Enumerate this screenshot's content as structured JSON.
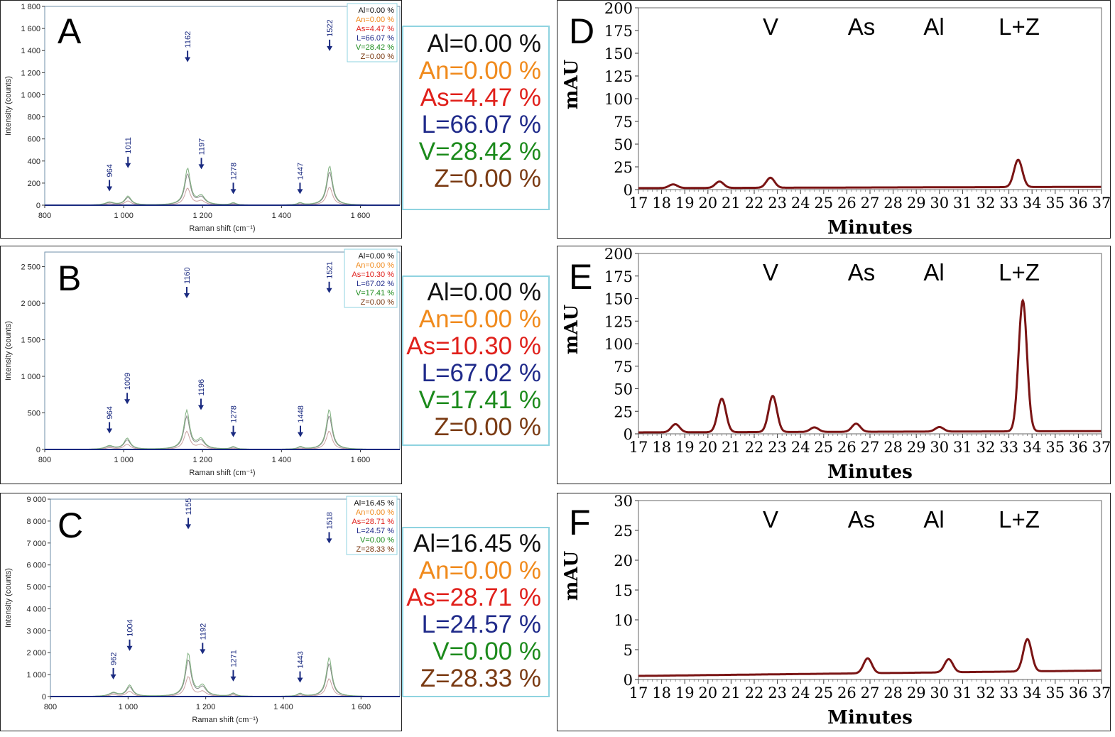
{
  "colors": {
    "Al": "#111111",
    "An": "#f08a1c",
    "As": "#e0201b",
    "L": "#1f2a8a",
    "V": "#1b8a1b",
    "Z": "#7a3a12",
    "hplc": "#7a1414",
    "box": "#8fd3e0"
  },
  "raman_panels": [
    {
      "letter": "A",
      "ylabel": "Intensity (counts)",
      "xlabel": "Raman shift (cm⁻¹)",
      "legend": [
        "Al=0.00 %",
        "An=0.00 %",
        "As=4.47 %",
        "L=66.07 %",
        "V=28.42 %",
        "Z=0.00 %"
      ],
      "composition": [
        "Al=0.00 %",
        "An=0.00 %",
        "As=4.47 %",
        "L=66.07 %",
        "V=28.42 %",
        "Z=0.00 %"
      ]
    },
    {
      "letter": "B",
      "ylabel": "Intensity (counts)",
      "xlabel": "Raman shift (cm⁻¹)",
      "legend": [
        "Al=0.00 %",
        "An=0.00 %",
        "As=10.30 %",
        "L=67.02 %",
        "V=17.41 %",
        "Z=0.00 %"
      ],
      "composition": [
        "Al=0.00 %",
        "An=0.00 %",
        "As=10.30 %",
        "L=67.02 %",
        "V=17.41 %",
        "Z=0.00 %"
      ]
    },
    {
      "letter": "C",
      "ylabel": "Intensity (counts)",
      "xlabel": "Raman shift (cm⁻¹)",
      "legend": [
        "Al=16.45 %",
        "An=0.00 %",
        "As=28.71 %",
        "L=24.57 %",
        "V=0.00 %",
        "Z=28.33 %"
      ],
      "composition": [
        "Al=16.45 %",
        "An=0.00 %",
        "As=28.71 %",
        "L=24.57 %",
        "V=0.00 %",
        "Z=28.33 %"
      ]
    }
  ],
  "hplc_panels": [
    {
      "letter": "D",
      "ylabel": "mAU",
      "xlabel": "Minutes",
      "peak_labels": [
        "V",
        "As",
        "Al",
        "L+Z"
      ]
    },
    {
      "letter": "E",
      "ylabel": "mAU",
      "xlabel": "Minutes",
      "peak_labels": [
        "V",
        "As",
        "Al",
        "L+Z"
      ]
    },
    {
      "letter": "F",
      "ylabel": "mAU",
      "xlabel": "Minutes",
      "peak_labels": [
        "V",
        "As",
        "Al",
        "L+Z"
      ]
    }
  ],
  "chart_data": [
    {
      "type": "line",
      "panel": "A",
      "xlim": [
        800,
        1700
      ],
      "ylim": [
        0,
        1800
      ],
      "x_ticks": [
        "800",
        "1 000",
        "1 200",
        "1 400",
        "1 600"
      ],
      "y_ticks": [
        "0",
        "200",
        "400",
        "600",
        "800",
        "1 000",
        "1 200",
        "1 400",
        "1 600",
        "1 800"
      ],
      "peaks": [
        {
          "x": 964,
          "y": 100,
          "label": "964"
        },
        {
          "x": 1011,
          "y": 310,
          "label": "1011"
        },
        {
          "x": 1162,
          "y": 1270,
          "label": "1162"
        },
        {
          "x": 1197,
          "y": 300,
          "label": "1197"
        },
        {
          "x": 1278,
          "y": 75,
          "label": "1278"
        },
        {
          "x": 1447,
          "y": 75,
          "label": "1447"
        },
        {
          "x": 1522,
          "y": 1370,
          "label": "1522"
        }
      ]
    },
    {
      "type": "line",
      "panel": "B",
      "xlim": [
        800,
        1700
      ],
      "ylim": [
        0,
        2700
      ],
      "x_ticks": [
        "800",
        "1 000",
        "1 200",
        "1 400",
        "1 600"
      ],
      "y_ticks": [
        "0",
        "500",
        "1 000",
        "1 500",
        "2 000",
        "2 500"
      ],
      "peaks": [
        {
          "x": 964,
          "y": 180,
          "label": "964"
        },
        {
          "x": 1009,
          "y": 580,
          "label": "1009"
        },
        {
          "x": 1160,
          "y": 2030,
          "label": "1160"
        },
        {
          "x": 1196,
          "y": 500,
          "label": "1196"
        },
        {
          "x": 1278,
          "y": 130,
          "label": "1278"
        },
        {
          "x": 1448,
          "y": 130,
          "label": "1448"
        },
        {
          "x": 1521,
          "y": 2100,
          "label": "1521"
        }
      ]
    },
    {
      "type": "line",
      "panel": "C",
      "xlim": [
        800,
        1700
      ],
      "ylim": [
        0,
        9000
      ],
      "x_ticks": [
        "800",
        "1 000",
        "1 200",
        "1 400",
        "1 600"
      ],
      "y_ticks": [
        "0",
        "1 000",
        "2 000",
        "3 000",
        "4 000",
        "5 000",
        "6 000",
        "7 000",
        "8 000",
        "9 000"
      ],
      "peaks": [
        {
          "x": 962,
          "y": 650,
          "label": "962"
        },
        {
          "x": 1004,
          "y": 1950,
          "label": "1004"
        },
        {
          "x": 1155,
          "y": 7500,
          "label": "1155"
        },
        {
          "x": 1192,
          "y": 1800,
          "label": "1192"
        },
        {
          "x": 1271,
          "y": 560,
          "label": "1271"
        },
        {
          "x": 1443,
          "y": 500,
          "label": "1443"
        },
        {
          "x": 1518,
          "y": 6850,
          "label": "1518"
        }
      ]
    },
    {
      "type": "line",
      "panel": "D",
      "xlim": [
        17,
        37
      ],
      "ylim": [
        0,
        200
      ],
      "x_ticks": [
        "17",
        "18",
        "19",
        "20",
        "21",
        "22",
        "23",
        "24",
        "25",
        "26",
        "27",
        "28",
        "29",
        "30",
        "31",
        "32",
        "33",
        "34",
        "35",
        "36",
        "37"
      ],
      "y_ticks": [
        "0",
        "25",
        "50",
        "75",
        "100",
        "125",
        "150",
        "175",
        "200"
      ],
      "peaks": [
        {
          "x": 18.5,
          "y": 4
        },
        {
          "x": 20.5,
          "y": 7
        },
        {
          "x": 22.7,
          "y": 11
        },
        {
          "x": 33.4,
          "y": 30
        }
      ]
    },
    {
      "type": "line",
      "panel": "E",
      "xlim": [
        17,
        37
      ],
      "ylim": [
        0,
        200
      ],
      "x_ticks": [
        "17",
        "18",
        "19",
        "20",
        "21",
        "22",
        "23",
        "24",
        "25",
        "26",
        "27",
        "28",
        "29",
        "30",
        "31",
        "32",
        "33",
        "34",
        "35",
        "36",
        "37"
      ],
      "y_ticks": [
        "0",
        "25",
        "50",
        "75",
        "100",
        "125",
        "150",
        "175",
        "200"
      ],
      "peaks": [
        {
          "x": 18.6,
          "y": 9
        },
        {
          "x": 20.6,
          "y": 37
        },
        {
          "x": 22.8,
          "y": 40
        },
        {
          "x": 24.6,
          "y": 5
        },
        {
          "x": 26.4,
          "y": 9
        },
        {
          "x": 30,
          "y": 5
        },
        {
          "x": 33.6,
          "y": 145
        }
      ]
    },
    {
      "type": "line",
      "panel": "F",
      "xlim": [
        17,
        37
      ],
      "ylim": [
        0,
        30
      ],
      "x_ticks": [
        "17",
        "18",
        "19",
        "20",
        "21",
        "22",
        "23",
        "24",
        "25",
        "26",
        "27",
        "28",
        "29",
        "30",
        "31",
        "32",
        "33",
        "34",
        "35",
        "36",
        "37"
      ],
      "y_ticks": [
        "0",
        "5",
        "10",
        "15",
        "20",
        "25",
        "30"
      ],
      "peaks": [
        {
          "x": 26.9,
          "y": 2.5
        },
        {
          "x": 30.4,
          "y": 2.2
        },
        {
          "x": 33.8,
          "y": 5.4
        }
      ]
    }
  ]
}
